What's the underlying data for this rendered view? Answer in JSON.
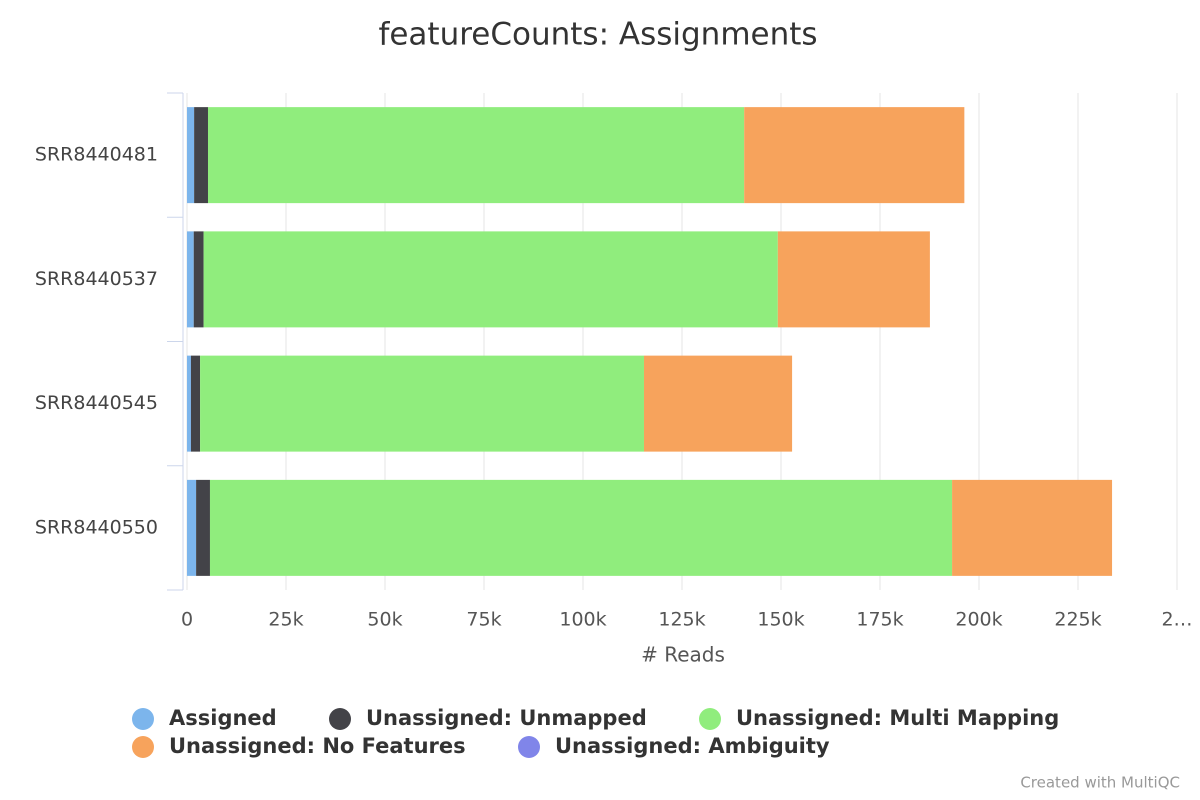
{
  "chart_data": {
    "type": "bar",
    "orientation": "horizontal",
    "stacked": true,
    "title": "featureCounts: Assignments",
    "xlabel": "# Reads",
    "credits": "Created with MultiQC",
    "categories": [
      "SRR8440481",
      "SRR8440537",
      "SRR8440545",
      "SRR8440550"
    ],
    "series": [
      {
        "name": "Assigned",
        "color": "#7cb5ec",
        "values": [
          1800,
          1700,
          1000,
          2300
        ]
      },
      {
        "name": "Unassigned: Unmapped",
        "color": "#434348",
        "values": [
          3500,
          2500,
          2300,
          3500
        ]
      },
      {
        "name": "Unassigned: Multi Mapping",
        "color": "#90ed7d",
        "values": [
          135400,
          145000,
          112100,
          187400
        ]
      },
      {
        "name": "Unassigned: No Features",
        "color": "#f7a35c",
        "values": [
          55600,
          38400,
          37400,
          40400
        ]
      },
      {
        "name": "Unassigned: Ambiguity",
        "color": "#8085e9",
        "values": [
          0,
          0,
          0,
          0
        ]
      }
    ],
    "xlim": [
      0,
      250000
    ],
    "xticks": [
      0,
      {
        "value": 25000,
        "label": "25k"
      },
      {
        "value": 50000,
        "label": "50k"
      },
      {
        "value": 75000,
        "label": "75k"
      },
      {
        "value": 100000,
        "label": "100k"
      },
      {
        "value": 125000,
        "label": "125k"
      },
      {
        "value": 150000,
        "label": "150k"
      },
      {
        "value": 175000,
        "label": "175k"
      },
      {
        "value": 200000,
        "label": "200k"
      },
      {
        "value": 225000,
        "label": "225k"
      },
      {
        "value": 250000,
        "label": "2…"
      }
    ],
    "grid": true,
    "legend": "bottom"
  }
}
